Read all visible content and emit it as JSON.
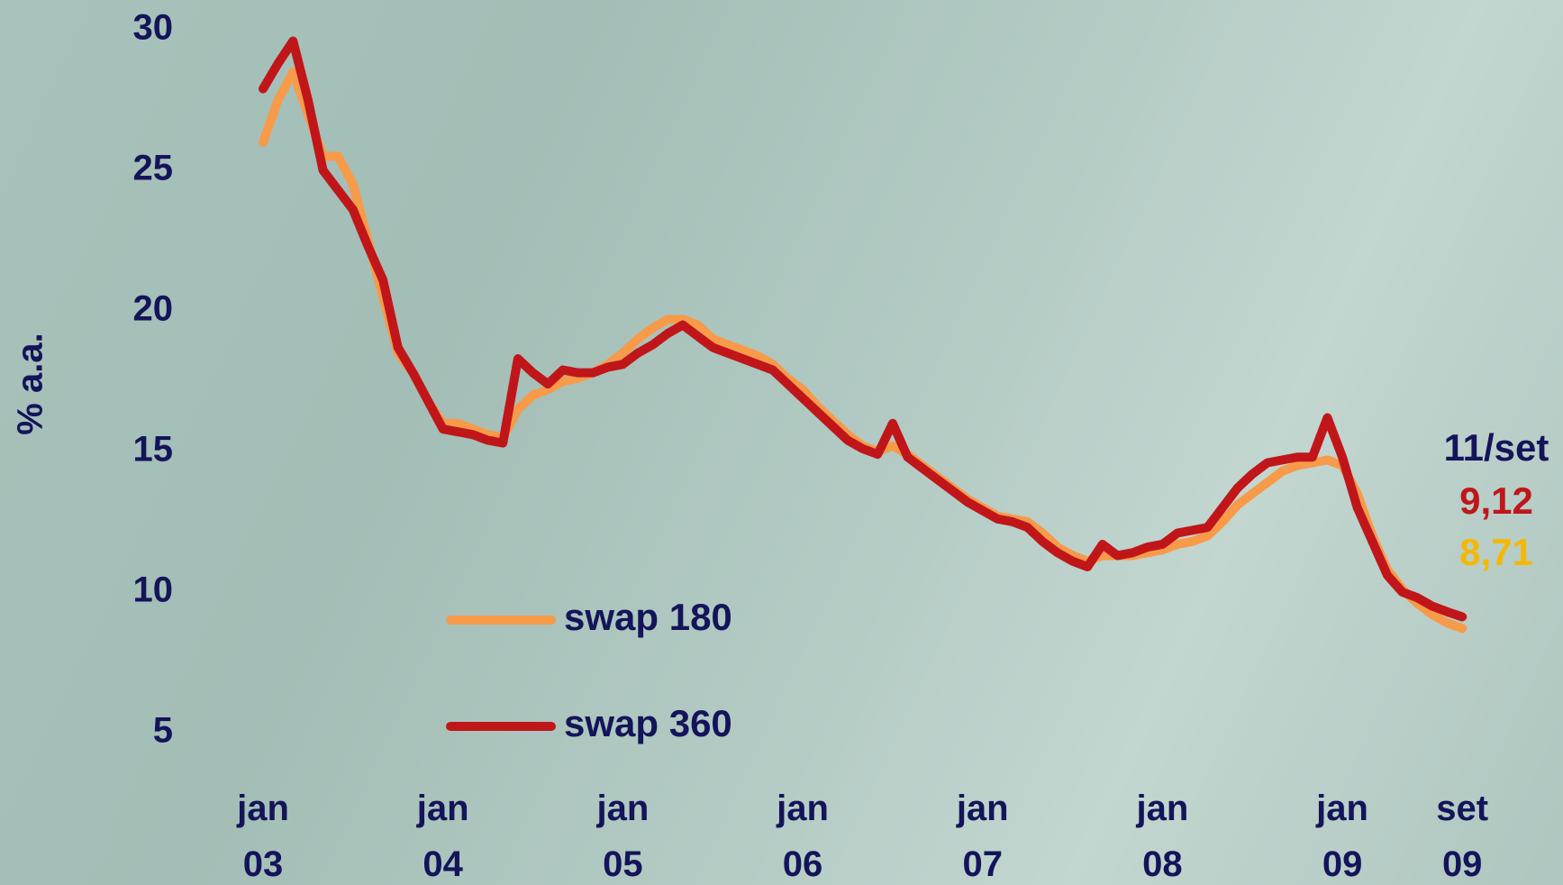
{
  "chart_data": {
    "type": "line",
    "y_label": "% a.a.",
    "annotation": "11/set",
    "x": [
      0,
      1,
      2,
      3,
      4,
      5,
      6,
      7,
      8,
      9,
      10,
      11,
      12,
      13,
      14,
      15,
      16,
      17,
      18,
      19,
      20,
      21,
      22,
      23,
      24,
      25,
      26,
      27,
      28,
      29,
      30,
      31,
      32,
      33,
      34,
      35,
      36,
      37,
      38,
      39,
      40,
      41,
      42,
      43,
      44,
      45,
      46,
      47,
      48,
      49,
      50,
      51,
      52,
      53,
      54,
      55,
      56,
      57,
      58,
      59,
      60,
      61,
      62,
      63,
      64,
      65,
      66,
      67,
      68,
      69,
      70,
      71,
      72,
      73,
      74,
      75,
      76,
      77,
      78,
      79,
      80
    ],
    "xticks": [
      {
        "value": 0,
        "label": "jan 03"
      },
      {
        "value": 12,
        "label": "jan 04"
      },
      {
        "value": 24,
        "label": "jan 05"
      },
      {
        "value": 36,
        "label": "jan 06"
      },
      {
        "value": 48,
        "label": "jan 07"
      },
      {
        "value": 60,
        "label": "jan 08"
      },
      {
        "value": 72,
        "label": "jan 09"
      },
      {
        "value": 80,
        "label": "set 09"
      }
    ],
    "xlim": [
      0,
      80
    ],
    "ylim": [
      5,
      30
    ],
    "yticks": [
      5,
      10,
      15,
      20,
      25,
      30
    ],
    "grid": false,
    "series": [
      {
        "name": "swap 180",
        "color": "#f79a4a",
        "label_color": "#f5b800",
        "last_label": "8,71",
        "values": [
          26,
          27.5,
          28.5,
          27,
          25.5,
          25.5,
          24.5,
          22.5,
          20.5,
          18.5,
          17.8,
          16.8,
          16,
          16,
          15.8,
          15.6,
          15.5,
          16.5,
          17,
          17.2,
          17.5,
          17.6,
          17.8,
          18.1,
          18.5,
          19,
          19.4,
          19.7,
          19.7,
          19.5,
          19,
          18.8,
          18.6,
          18.4,
          18.1,
          17.6,
          17.2,
          16.6,
          16.1,
          15.6,
          15.2,
          15,
          15.2,
          14.9,
          14.5,
          14.1,
          13.7,
          13.3,
          13,
          12.7,
          12.6,
          12.5,
          12.1,
          11.6,
          11.3,
          11.1,
          11.3,
          11.3,
          11.3,
          11.4,
          11.5,
          11.7,
          11.8,
          12,
          12.5,
          13.1,
          13.5,
          13.9,
          14.3,
          14.5,
          14.6,
          14.7,
          14.5,
          13.5,
          12,
          10.8,
          10.1,
          9.6,
          9.2,
          8.9,
          8.71
        ]
      },
      {
        "name": "swap 360",
        "color": "#c0161a",
        "label_color": "#c0161a",
        "last_label": "9,12",
        "values": [
          27.9,
          28.8,
          29.6,
          27.5,
          25,
          24.3,
          23.6,
          22.3,
          21.1,
          18.7,
          17.8,
          16.8,
          15.8,
          15.7,
          15.6,
          15.4,
          15.3,
          18.3,
          17.8,
          17.4,
          17.9,
          17.8,
          17.8,
          18,
          18.1,
          18.5,
          18.8,
          19.2,
          19.5,
          19.1,
          18.7,
          18.5,
          18.3,
          18.1,
          17.9,
          17.4,
          16.9,
          16.4,
          15.9,
          15.4,
          15.1,
          14.9,
          16,
          14.8,
          14.4,
          14,
          13.6,
          13.2,
          12.9,
          12.6,
          12.5,
          12.3,
          11.8,
          11.4,
          11.1,
          10.9,
          11.7,
          11.3,
          11.4,
          11.6,
          11.7,
          12.1,
          12.2,
          12.3,
          13,
          13.7,
          14.2,
          14.6,
          14.7,
          14.8,
          14.8,
          16.2,
          14.8,
          13,
          11.8,
          10.6,
          10,
          9.8,
          9.5,
          9.3,
          9.12
        ]
      }
    ]
  }
}
